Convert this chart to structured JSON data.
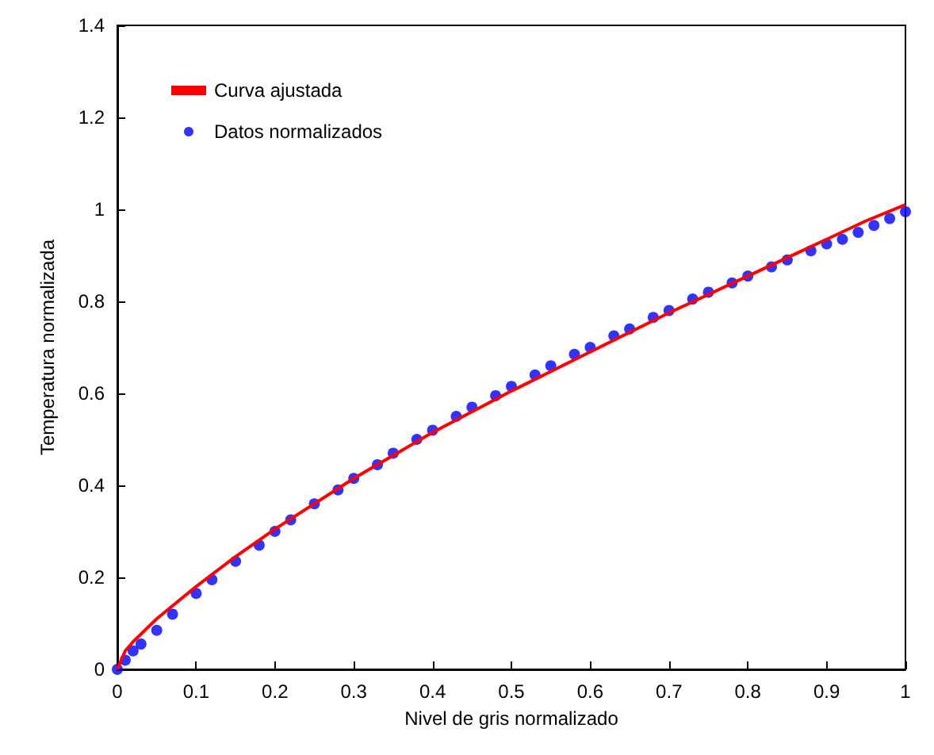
{
  "chart_data": {
    "type": "scatter",
    "xlabel": "Nivel de gris normalizado",
    "ylabel": "Temperatura normalizada",
    "xlim": [
      0,
      1
    ],
    "ylim": [
      0,
      1.4
    ],
    "xticks": [
      0,
      0.1,
      0.2,
      0.3,
      0.4,
      0.5,
      0.6,
      0.7,
      0.8,
      0.9,
      1
    ],
    "yticks": [
      0,
      0.2,
      0.4,
      0.6,
      0.8,
      1,
      1.2,
      1.4
    ],
    "grid": false,
    "legend": "top left",
    "series": [
      {
        "name": "Curva ajustada",
        "type": "line",
        "color": "#ff0000",
        "line_style": "solid",
        "x": [
          0,
          0.01,
          0.02,
          0.05,
          0.1,
          0.15,
          0.2,
          0.3,
          0.4,
          0.5,
          0.6,
          0.7,
          0.8,
          0.9,
          0.95,
          1
        ],
        "values": [
          0,
          0.04,
          0.06,
          0.11,
          0.18,
          0.245,
          0.305,
          0.415,
          0.515,
          0.605,
          0.69,
          0.775,
          0.855,
          0.935,
          0.975,
          1.01
        ]
      },
      {
        "name": "Datos normalizados",
        "marker": "circle",
        "color": "#0000ff",
        "x": [
          0,
          0.01,
          0.02,
          0.03,
          0.05,
          0.07,
          0.1,
          0.12,
          0.15,
          0.18,
          0.2,
          0.22,
          0.25,
          0.28,
          0.3,
          0.33,
          0.35,
          0.38,
          0.4,
          0.43,
          0.45,
          0.48,
          0.5,
          0.53,
          0.55,
          0.58,
          0.6,
          0.63,
          0.65,
          0.68,
          0.7,
          0.73,
          0.75,
          0.78,
          0.8,
          0.83,
          0.85,
          0.88,
          0.9,
          0.92,
          0.94,
          0.96,
          0.98,
          1
        ],
        "values": [
          0,
          0.02,
          0.04,
          0.055,
          0.085,
          0.12,
          0.165,
          0.195,
          0.235,
          0.27,
          0.3,
          0.325,
          0.36,
          0.39,
          0.415,
          0.445,
          0.47,
          0.5,
          0.52,
          0.55,
          0.57,
          0.595,
          0.615,
          0.64,
          0.66,
          0.685,
          0.7,
          0.725,
          0.74,
          0.765,
          0.78,
          0.805,
          0.82,
          0.84,
          0.855,
          0.875,
          0.89,
          0.91,
          0.925,
          0.935,
          0.95,
          0.965,
          0.98,
          0.995
        ]
      }
    ]
  }
}
